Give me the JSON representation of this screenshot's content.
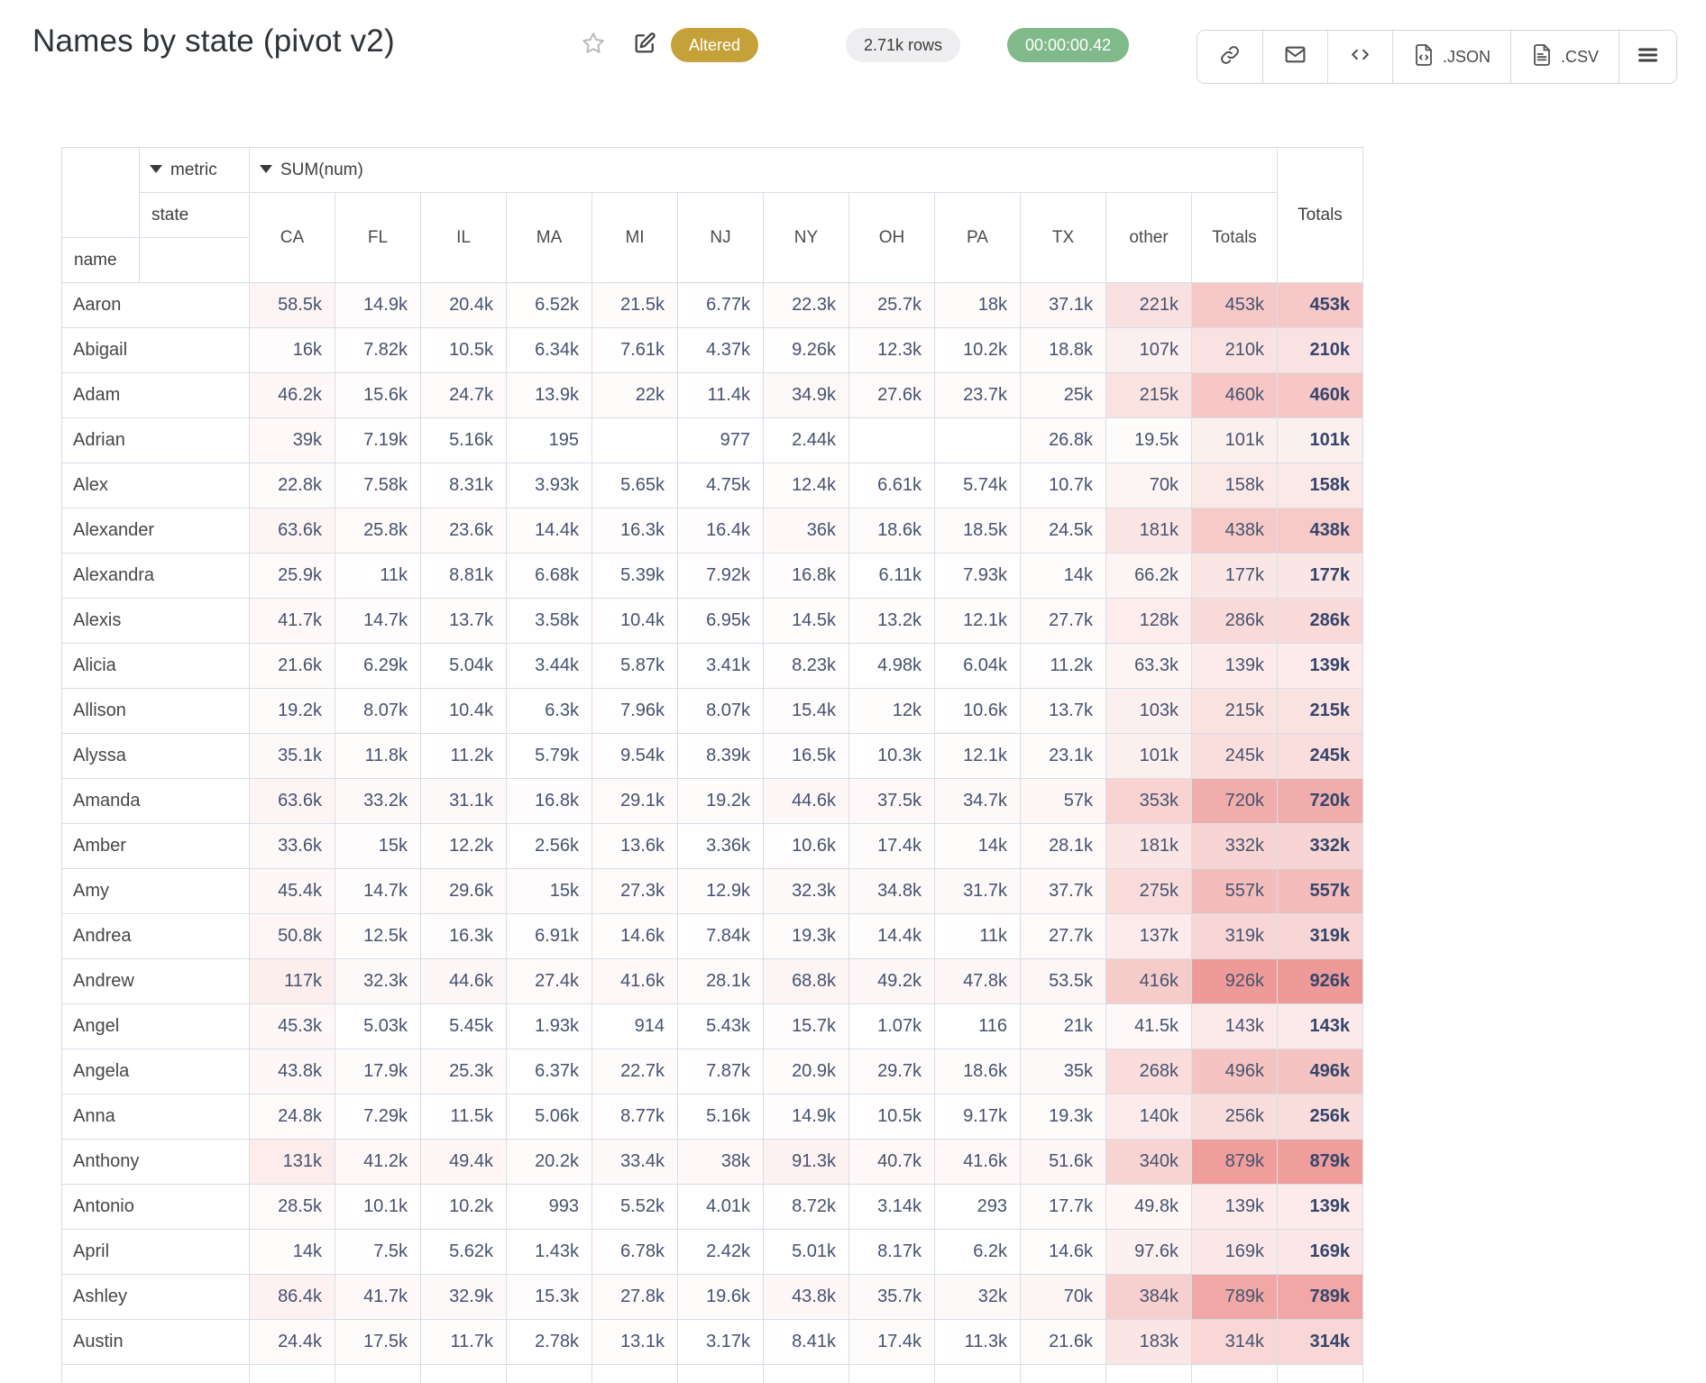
{
  "header": {
    "title": "Names by state (pivot v2)",
    "status_badge": "Altered",
    "rows_badge": "2.71k rows",
    "timer_badge": "00:00:00.42",
    "toolbar": {
      "json_label": ".JSON",
      "csv_label": ".CSV"
    }
  },
  "colors": {
    "status_badge_bg": "#c5a139",
    "rows_badge_bg": "#eeeef0",
    "timer_badge_bg": "#80b98a",
    "heat_base": "#ee9a98",
    "table_border": "#d7dee7",
    "value_text": "#46536e"
  },
  "pivot": {
    "metric_label": "metric",
    "value_label": "SUM(num)",
    "state_label": "state",
    "name_label": "name",
    "totals_label": "Totals",
    "columns": [
      "CA",
      "FL",
      "IL",
      "MA",
      "MI",
      "NJ",
      "NY",
      "OH",
      "PA",
      "TX",
      "other",
      "Totals"
    ],
    "rows": [
      {
        "name": "Aaron",
        "values": [
          "58.5k",
          "14.9k",
          "20.4k",
          "6.52k",
          "21.5k",
          "6.77k",
          "22.3k",
          "25.7k",
          "18k",
          "37.1k",
          "221k",
          "453k"
        ],
        "total": "453k"
      },
      {
        "name": "Abigail",
        "values": [
          "16k",
          "7.82k",
          "10.5k",
          "6.34k",
          "7.61k",
          "4.37k",
          "9.26k",
          "12.3k",
          "10.2k",
          "18.8k",
          "107k",
          "210k"
        ],
        "total": "210k"
      },
      {
        "name": "Adam",
        "values": [
          "46.2k",
          "15.6k",
          "24.7k",
          "13.9k",
          "22k",
          "11.4k",
          "34.9k",
          "27.6k",
          "23.7k",
          "25k",
          "215k",
          "460k"
        ],
        "total": "460k"
      },
      {
        "name": "Adrian",
        "values": [
          "39k",
          "7.19k",
          "5.16k",
          "195",
          "",
          "977",
          "2.44k",
          "",
          "",
          "26.8k",
          "19.5k",
          "101k"
        ],
        "total": "101k"
      },
      {
        "name": "Alex",
        "values": [
          "22.8k",
          "7.58k",
          "8.31k",
          "3.93k",
          "5.65k",
          "4.75k",
          "12.4k",
          "6.61k",
          "5.74k",
          "10.7k",
          "70k",
          "158k"
        ],
        "total": "158k"
      },
      {
        "name": "Alexander",
        "values": [
          "63.6k",
          "25.8k",
          "23.6k",
          "14.4k",
          "16.3k",
          "16.4k",
          "36k",
          "18.6k",
          "18.5k",
          "24.5k",
          "181k",
          "438k"
        ],
        "total": "438k"
      },
      {
        "name": "Alexandra",
        "values": [
          "25.9k",
          "11k",
          "8.81k",
          "6.68k",
          "5.39k",
          "7.92k",
          "16.8k",
          "6.11k",
          "7.93k",
          "14k",
          "66.2k",
          "177k"
        ],
        "total": "177k"
      },
      {
        "name": "Alexis",
        "values": [
          "41.7k",
          "14.7k",
          "13.7k",
          "3.58k",
          "10.4k",
          "6.95k",
          "14.5k",
          "13.2k",
          "12.1k",
          "27.7k",
          "128k",
          "286k"
        ],
        "total": "286k"
      },
      {
        "name": "Alicia",
        "values": [
          "21.6k",
          "6.29k",
          "5.04k",
          "3.44k",
          "5.87k",
          "3.41k",
          "8.23k",
          "4.98k",
          "6.04k",
          "11.2k",
          "63.3k",
          "139k"
        ],
        "total": "139k"
      },
      {
        "name": "Allison",
        "values": [
          "19.2k",
          "8.07k",
          "10.4k",
          "6.3k",
          "7.96k",
          "8.07k",
          "15.4k",
          "12k",
          "10.6k",
          "13.7k",
          "103k",
          "215k"
        ],
        "total": "215k"
      },
      {
        "name": "Alyssa",
        "values": [
          "35.1k",
          "11.8k",
          "11.2k",
          "5.79k",
          "9.54k",
          "8.39k",
          "16.5k",
          "10.3k",
          "12.1k",
          "23.1k",
          "101k",
          "245k"
        ],
        "total": "245k"
      },
      {
        "name": "Amanda",
        "values": [
          "63.6k",
          "33.2k",
          "31.1k",
          "16.8k",
          "29.1k",
          "19.2k",
          "44.6k",
          "37.5k",
          "34.7k",
          "57k",
          "353k",
          "720k"
        ],
        "total": "720k"
      },
      {
        "name": "Amber",
        "values": [
          "33.6k",
          "15k",
          "12.2k",
          "2.56k",
          "13.6k",
          "3.36k",
          "10.6k",
          "17.4k",
          "14k",
          "28.1k",
          "181k",
          "332k"
        ],
        "total": "332k"
      },
      {
        "name": "Amy",
        "values": [
          "45.4k",
          "14.7k",
          "29.6k",
          "15k",
          "27.3k",
          "12.9k",
          "32.3k",
          "34.8k",
          "31.7k",
          "37.7k",
          "275k",
          "557k"
        ],
        "total": "557k"
      },
      {
        "name": "Andrea",
        "values": [
          "50.8k",
          "12.5k",
          "16.3k",
          "6.91k",
          "14.6k",
          "7.84k",
          "19.3k",
          "14.4k",
          "11k",
          "27.7k",
          "137k",
          "319k"
        ],
        "total": "319k"
      },
      {
        "name": "Andrew",
        "values": [
          "117k",
          "32.3k",
          "44.6k",
          "27.4k",
          "41.6k",
          "28.1k",
          "68.8k",
          "49.2k",
          "47.8k",
          "53.5k",
          "416k",
          "926k"
        ],
        "total": "926k"
      },
      {
        "name": "Angel",
        "values": [
          "45.3k",
          "5.03k",
          "5.45k",
          "1.93k",
          "914",
          "5.43k",
          "15.7k",
          "1.07k",
          "116",
          "21k",
          "41.5k",
          "143k"
        ],
        "total": "143k"
      },
      {
        "name": "Angela",
        "values": [
          "43.8k",
          "17.9k",
          "25.3k",
          "6.37k",
          "22.7k",
          "7.87k",
          "20.9k",
          "29.7k",
          "18.6k",
          "35k",
          "268k",
          "496k"
        ],
        "total": "496k"
      },
      {
        "name": "Anna",
        "values": [
          "24.8k",
          "7.29k",
          "11.5k",
          "5.06k",
          "8.77k",
          "5.16k",
          "14.9k",
          "10.5k",
          "9.17k",
          "19.3k",
          "140k",
          "256k"
        ],
        "total": "256k"
      },
      {
        "name": "Anthony",
        "values": [
          "131k",
          "41.2k",
          "49.4k",
          "20.2k",
          "33.4k",
          "38k",
          "91.3k",
          "40.7k",
          "41.6k",
          "51.6k",
          "340k",
          "879k"
        ],
        "total": "879k"
      },
      {
        "name": "Antonio",
        "values": [
          "28.5k",
          "10.1k",
          "10.2k",
          "993",
          "5.52k",
          "4.01k",
          "8.72k",
          "3.14k",
          "293",
          "17.7k",
          "49.8k",
          "139k"
        ],
        "total": "139k"
      },
      {
        "name": "April",
        "values": [
          "14k",
          "7.5k",
          "5.62k",
          "1.43k",
          "6.78k",
          "2.42k",
          "5.01k",
          "8.17k",
          "6.2k",
          "14.6k",
          "97.6k",
          "169k"
        ],
        "total": "169k"
      },
      {
        "name": "Ashley",
        "values": [
          "86.4k",
          "41.7k",
          "32.9k",
          "15.3k",
          "27.8k",
          "19.6k",
          "43.8k",
          "35.7k",
          "32k",
          "70k",
          "384k",
          "789k"
        ],
        "total": "789k"
      },
      {
        "name": "Austin",
        "values": [
          "24.4k",
          "17.5k",
          "11.7k",
          "2.78k",
          "13.1k",
          "3.17k",
          "8.41k",
          "17.4k",
          "11.3k",
          "21.6k",
          "183k",
          "314k"
        ],
        "total": "314k"
      }
    ]
  }
}
